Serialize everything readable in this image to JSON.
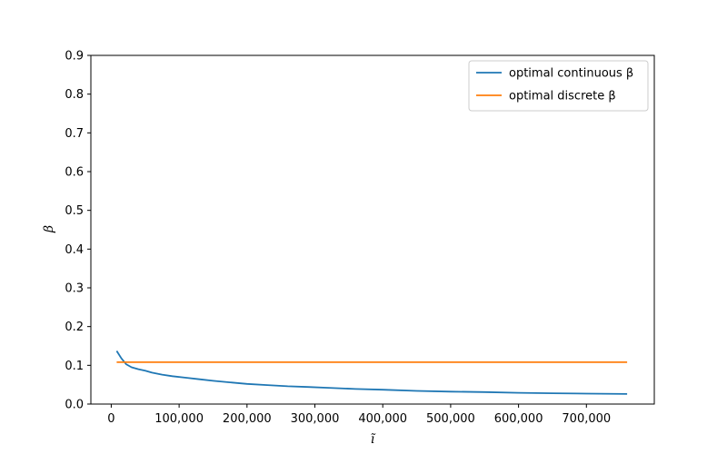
{
  "chart_data": {
    "type": "line",
    "title": "",
    "xlabel": "ĩ",
    "ylabel": "β",
    "xlim": [
      -30000,
      800000
    ],
    "ylim": [
      0,
      0.9
    ],
    "xticks": [
      0,
      100000,
      200000,
      300000,
      400000,
      500000,
      600000,
      700000
    ],
    "xtick_labels": [
      "0",
      "100,000",
      "200,000",
      "300,000",
      "400,000",
      "500,000",
      "600,000",
      "700,000"
    ],
    "yticks": [
      0.0,
      0.1,
      0.2,
      0.3,
      0.4,
      0.5,
      0.6,
      0.7,
      0.8,
      0.9
    ],
    "ytick_labels": [
      "0.0",
      "0.1",
      "0.2",
      "0.3",
      "0.4",
      "0.5",
      "0.6",
      "0.7",
      "0.8",
      "0.9"
    ],
    "grid": false,
    "legend_position": "top-right",
    "series": [
      {
        "name": "optimal continuous β",
        "color": "#1f77b4",
        "x": [
          8000,
          15000,
          22000,
          30000,
          40000,
          50000,
          60000,
          75000,
          90000,
          110000,
          130000,
          150000,
          175000,
          200000,
          230000,
          260000,
          290000,
          320000,
          360000,
          400000,
          450000,
          500000,
          550000,
          600000,
          650000,
          700000,
          760000
        ],
        "y": [
          0.137,
          0.118,
          0.103,
          0.095,
          0.09,
          0.086,
          0.081,
          0.076,
          0.072,
          0.068,
          0.064,
          0.06,
          0.056,
          0.052,
          0.049,
          0.046,
          0.044,
          0.042,
          0.039,
          0.037,
          0.034,
          0.032,
          0.031,
          0.029,
          0.028,
          0.027,
          0.026
        ]
      },
      {
        "name": "optimal discrete β",
        "color": "#ff7f0e",
        "x": [
          8000,
          760000
        ],
        "y": [
          0.108,
          0.108
        ]
      }
    ]
  }
}
